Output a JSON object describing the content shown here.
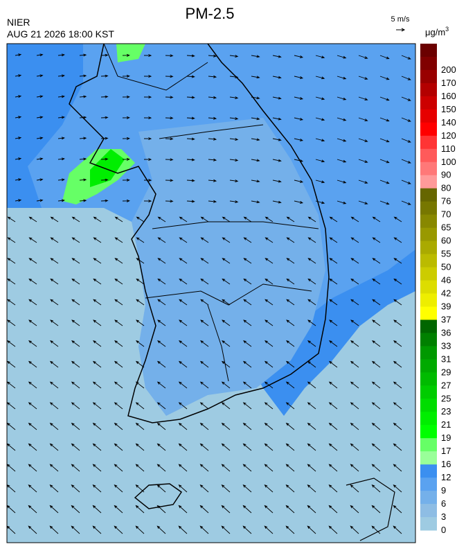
{
  "header": {
    "title": "PM-2.5",
    "agency": "NIER",
    "datetime": "AUG 21 2026 18:00 KST"
  },
  "wind_scale": {
    "label": "5 m/s"
  },
  "legend": {
    "unit": "μg/m",
    "unit_exponent": "3",
    "levels": [
      200,
      170,
      160,
      150,
      140,
      120,
      110,
      100,
      90,
      80,
      76,
      70,
      65,
      60,
      55,
      50,
      46,
      42,
      39,
      37,
      36,
      33,
      31,
      29,
      27,
      25,
      23,
      21,
      19,
      17,
      16,
      12,
      9,
      6,
      3,
      0
    ],
    "colors": [
      "#6b0000",
      "#800000",
      "#990000",
      "#b30000",
      "#cc0000",
      "#e60000",
      "#ff0000",
      "#ff3535",
      "#ff5a5a",
      "#ff7878",
      "#ff9a9a",
      "#666600",
      "#777700",
      "#888800",
      "#999900",
      "#aaaa00",
      "#bbbb00",
      "#cccc00",
      "#dddd00",
      "#eeee00",
      "#ffff00",
      "#006600",
      "#008000",
      "#009900",
      "#00aa00",
      "#00bb00",
      "#00cc00",
      "#00dd00",
      "#00ee00",
      "#00ff00",
      "#66ff66",
      "#99ff99",
      "#3b8ff0",
      "#5aa2f0",
      "#74b0ea",
      "#8ebde4",
      "#9ecbe2"
    ]
  }
}
